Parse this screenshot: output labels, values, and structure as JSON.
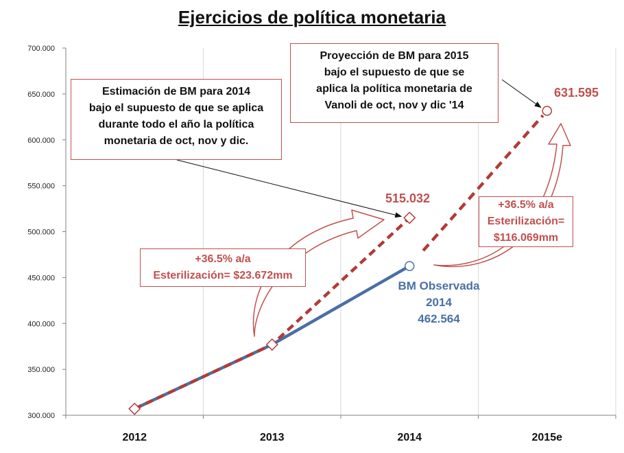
{
  "chart_data": {
    "type": "line",
    "title": "Ejercicios de política monetaria",
    "categories": [
      "2012",
      "2013",
      "2014",
      "2015e"
    ],
    "ylim": [
      300000,
      700000
    ],
    "yticks": [
      "300.000",
      "350.000",
      "400.000",
      "450.000",
      "500.000",
      "550.000",
      "600.000",
      "650.000",
      "700.000"
    ],
    "ytick_values": [
      300000,
      350000,
      400000,
      450000,
      500000,
      550000,
      600000,
      650000,
      700000
    ],
    "grid": "vertical",
    "series": [
      {
        "name": "BM Observada",
        "style": "solid",
        "color": "#4a6fa5",
        "values": [
          307000,
          377000,
          462564,
          null
        ]
      },
      {
        "name": "Estimación de BM 2014",
        "style": "dashed",
        "color": "#b23b36",
        "values": [
          307000,
          377000,
          515032,
          null
        ]
      },
      {
        "name": "Proyección de BM 2015",
        "style": "dashed",
        "color": "#b23b36",
        "values": [
          null,
          null,
          462564,
          631595
        ]
      }
    ],
    "point_labels": {
      "estimate_2014": "515.032",
      "projection_2015": "631.595",
      "observed_title": "BM Observada",
      "observed_year": "2014",
      "observed_value": "462.564"
    }
  },
  "callouts": {
    "estimate_2014": [
      "Estimación  de BM  para 2014",
      "bajo el supuesto de que se aplica",
      "durante todo el año la política",
      "monetaria de oct, nov y dic."
    ],
    "projection_2015": [
      "Proyección de BM  para 2015",
      "bajo el supuesto de que se",
      "aplica la política monetaria de",
      "Vanoli de oct, nov y dic '14"
    ],
    "growth_2014": [
      "+36.5% a/a",
      "Esterilización= $23.672mm"
    ],
    "growth_2015": [
      "+36.5% a/a",
      "Esterilización=",
      "$116.069mm"
    ]
  },
  "colors": {
    "observed": "#4a6fa5",
    "projection": "#b23b36",
    "callout_border": "#c0504d",
    "grid": "#d9d9d9"
  }
}
